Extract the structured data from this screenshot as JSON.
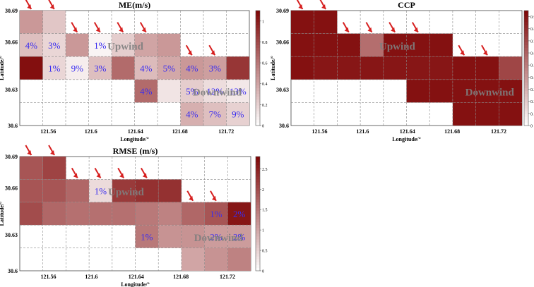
{
  "chart_data": [
    {
      "type": "heatmap",
      "title": "ME(m/s)",
      "xlabel": "Longitude/°",
      "ylabel": "Latitude/°",
      "x_ticks": [
        "121.56",
        "121.6",
        "121.64",
        "121.68",
        "121.72"
      ],
      "y_ticks": [
        "30.69",
        "30.66",
        "30.63",
        "30.6"
      ],
      "colorbar_ticks": [
        "1",
        "0.8",
        "0.6",
        "0.4",
        "0.2",
        "0"
      ],
      "vmax": 1.1,
      "grid_cols": 10,
      "grid_rows": 5,
      "values": [
        [
          0.45,
          0.25,
          null,
          null,
          null,
          null,
          null,
          null,
          null,
          null
        ],
        [
          0.28,
          0.18,
          0.45,
          0.05,
          0.22,
          0.4,
          0.45,
          null,
          null,
          null
        ],
        [
          1.05,
          0.18,
          0.08,
          0.28,
          0.65,
          0.3,
          0.38,
          0.45,
          0.42,
          0.88
        ],
        [
          null,
          null,
          null,
          null,
          null,
          0.65,
          0.12,
          0.22,
          0.15,
          0.1
        ],
        [
          null,
          null,
          null,
          null,
          null,
          null,
          null,
          0.35,
          0.28,
          0.2
        ]
      ],
      "percent_labels": [
        [
          null,
          null,
          null,
          null,
          null,
          null,
          null,
          null,
          null,
          null
        ],
        [
          "4%",
          "3%",
          null,
          "1%",
          null,
          null,
          null,
          null,
          null,
          null
        ],
        [
          null,
          "1%",
          "9%",
          "3%",
          null,
          "4%",
          "5%",
          "4%",
          "3%",
          null
        ],
        [
          null,
          null,
          null,
          null,
          null,
          "4%",
          null,
          "5%",
          "12%",
          "13%"
        ],
        [
          null,
          null,
          null,
          null,
          null,
          null,
          null,
          "4%",
          "7%",
          "9%"
        ]
      ],
      "annotations": [
        "Upwind",
        "Downwind"
      ],
      "arrow_columns": [
        0,
        1,
        2,
        3,
        4,
        5,
        7,
        8
      ]
    },
    {
      "type": "heatmap",
      "title": "CCP",
      "xlabel": "Longitude/°",
      "ylabel": "Latitude/°",
      "x_ticks": [
        "121.56",
        "121.6",
        "121.64",
        "121.68",
        "121.72"
      ],
      "y_ticks": [
        "30.69",
        "30.66",
        "30.63",
        "30.6"
      ],
      "colorbar_ticks": [
        "0.9",
        "0.8",
        "0.7",
        "0.6",
        "0.5",
        "0.4",
        "0.3",
        "0.2",
        "0.1",
        "0"
      ],
      "vmax": 0.95,
      "grid_cols": 10,
      "grid_rows": 5,
      "values": [
        [
          0.9,
          0.9,
          null,
          null,
          null,
          null,
          null,
          null,
          null,
          null
        ],
        [
          0.9,
          0.9,
          0.9,
          0.55,
          0.9,
          0.9,
          0.9,
          null,
          null,
          null
        ],
        [
          0.9,
          0.88,
          0.88,
          0.88,
          0.88,
          0.88,
          0.88,
          0.9,
          0.9,
          0.7
        ],
        [
          null,
          null,
          null,
          null,
          null,
          0.9,
          0.9,
          0.9,
          0.9,
          0.9
        ],
        [
          null,
          null,
          null,
          null,
          null,
          null,
          null,
          0.9,
          0.9,
          0.9
        ]
      ],
      "percent_labels": [],
      "annotations": [
        "Upwind",
        "Downwind"
      ],
      "arrow_columns": [
        0,
        1,
        2,
        3,
        4,
        5,
        7,
        8
      ]
    },
    {
      "type": "heatmap",
      "title": "RMSE (m/s)",
      "xlabel": "Longitude/°",
      "ylabel": "Latitude/°",
      "x_ticks": [
        "121.56",
        "121.6",
        "121.64",
        "121.68",
        "121.72"
      ],
      "y_ticks": [
        "30.69",
        "30.66",
        "30.63",
        "30.6"
      ],
      "colorbar_ticks": [
        "2.5",
        "2",
        "1.5",
        "1",
        "0.5",
        "0"
      ],
      "vmax": 2.8,
      "grid_cols": 10,
      "grid_rows": 5,
      "values": [
        [
          1.9,
          2.1,
          null,
          null,
          null,
          null,
          null,
          null,
          null,
          null
        ],
        [
          1.9,
          1.9,
          1.7,
          0.4,
          2.2,
          2.3,
          2.3,
          null,
          null,
          null
        ],
        [
          2.0,
          1.7,
          1.6,
          1.6,
          1.6,
          1.5,
          1.4,
          1.7,
          1.9,
          2.6
        ],
        [
          null,
          null,
          null,
          null,
          null,
          1.5,
          1.2,
          1.2,
          1.1,
          1.1
        ],
        [
          null,
          null,
          null,
          null,
          null,
          null,
          null,
          1.0,
          1.2,
          1.4
        ]
      ],
      "percent_labels": [
        [
          null,
          null,
          null,
          null,
          null,
          null,
          null,
          null,
          null,
          null
        ],
        [
          null,
          null,
          null,
          "1%",
          null,
          null,
          null,
          null,
          null,
          null
        ],
        [
          null,
          null,
          null,
          null,
          null,
          null,
          null,
          null,
          "1%",
          "2%"
        ],
        [
          null,
          null,
          null,
          null,
          null,
          "1%",
          null,
          null,
          "2%",
          "2%"
        ],
        [
          null,
          null,
          null,
          null,
          null,
          null,
          null,
          null,
          null,
          null
        ]
      ],
      "annotations": [
        "Upwind",
        "Downwind"
      ],
      "arrow_columns": [
        0,
        1,
        2,
        3,
        4,
        5,
        7,
        8
      ]
    }
  ]
}
